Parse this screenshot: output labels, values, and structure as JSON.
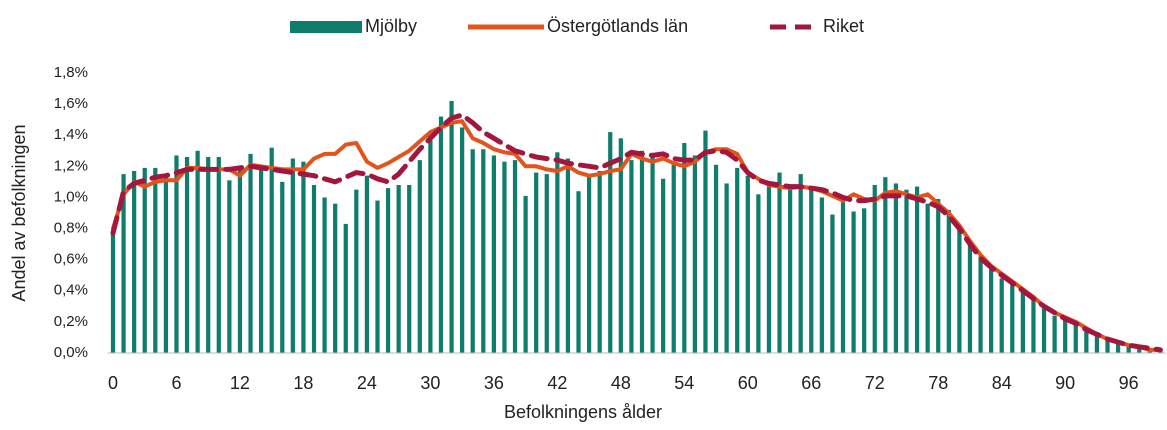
{
  "chart_data": {
    "type": "bar",
    "xlabel": "Befolkningens ålder",
    "ylabel": "Andel av befolkningen",
    "categories": [
      "0",
      null,
      null,
      null,
      null,
      null,
      "6",
      null,
      null,
      null,
      null,
      null,
      "12",
      null,
      null,
      null,
      null,
      null,
      "18",
      null,
      null,
      null,
      null,
      null,
      "24",
      null,
      null,
      null,
      null,
      null,
      "30",
      null,
      null,
      null,
      null,
      null,
      "36",
      null,
      null,
      null,
      null,
      null,
      "42",
      null,
      null,
      null,
      null,
      null,
      "48",
      null,
      null,
      null,
      null,
      null,
      "54",
      null,
      null,
      null,
      null,
      null,
      "60",
      null,
      null,
      null,
      null,
      null,
      "66",
      null,
      null,
      null,
      null,
      null,
      "72",
      null,
      null,
      null,
      null,
      null,
      "78",
      null,
      null,
      null,
      null,
      null,
      "84",
      null,
      null,
      null,
      null,
      null,
      "90",
      null,
      null,
      null,
      null,
      null,
      "96",
      null,
      null,
      null
    ],
    "ylim": [
      0,
      1.8
    ],
    "yticks": [
      {
        "value": 0,
        "label": "0,0%"
      },
      {
        "value": 0.2,
        "label": "0,2%"
      },
      {
        "value": 0.4,
        "label": "0,4%"
      },
      {
        "value": 0.6,
        "label": "0,6%"
      },
      {
        "value": 0.8,
        "label": "0,8%"
      },
      {
        "value": 1.0,
        "label": "1,0%"
      },
      {
        "value": 1.2,
        "label": "1,2%"
      },
      {
        "value": 1.4,
        "label": "1,4%"
      },
      {
        "value": 1.6,
        "label": "1,6%"
      },
      {
        "value": 1.8,
        "label": "1,8%"
      }
    ],
    "grid": false,
    "legend": "top",
    "series": [
      {
        "name": "Mjölby",
        "type": "bar",
        "color": "#0e7d6c",
        "values": [
          0.79,
          1.15,
          1.17,
          1.19,
          1.19,
          1.15,
          1.27,
          1.26,
          1.3,
          1.26,
          1.26,
          1.11,
          1.2,
          1.28,
          1.2,
          1.32,
          1.1,
          1.25,
          1.23,
          1.08,
          1.0,
          0.96,
          0.83,
          1.05,
          1.14,
          0.98,
          1.06,
          1.08,
          1.08,
          1.24,
          1.4,
          1.52,
          1.62,
          1.45,
          1.31,
          1.31,
          1.27,
          1.23,
          1.24,
          1.01,
          1.16,
          1.15,
          1.29,
          1.25,
          1.04,
          1.15,
          1.17,
          1.42,
          1.38,
          1.24,
          1.3,
          1.28,
          1.12,
          1.21,
          1.35,
          1.27,
          1.43,
          1.21,
          1.09,
          1.19,
          1.14,
          1.02,
          1.07,
          1.16,
          1.08,
          1.15,
          1.05,
          1.0,
          0.89,
          0.97,
          0.91,
          0.93,
          1.08,
          1.13,
          1.09,
          1.05,
          1.07,
          0.96,
          0.99,
          0.92,
          0.82,
          0.72,
          0.62,
          0.55,
          0.48,
          0.44,
          0.39,
          0.35,
          0.29,
          0.24,
          0.22,
          0.19,
          0.15,
          0.11,
          0.09,
          0.07,
          0.05,
          0.04,
          0.03,
          0.02
        ]
      },
      {
        "name": "Östergötlands län",
        "type": "line",
        "color": "#e4531c",
        "values": [
          0.8,
          1.02,
          1.1,
          1.07,
          1.1,
          1.11,
          1.11,
          1.19,
          1.19,
          1.18,
          1.18,
          1.18,
          1.14,
          1.21,
          1.2,
          1.19,
          1.18,
          1.18,
          1.18,
          1.25,
          1.28,
          1.28,
          1.34,
          1.35,
          1.23,
          1.19,
          1.22,
          1.26,
          1.3,
          1.36,
          1.42,
          1.45,
          1.48,
          1.49,
          1.38,
          1.35,
          1.31,
          1.29,
          1.28,
          1.2,
          1.2,
          1.18,
          1.17,
          1.2,
          1.16,
          1.14,
          1.15,
          1.17,
          1.18,
          1.28,
          1.25,
          1.23,
          1.25,
          1.22,
          1.2,
          1.23,
          1.29,
          1.31,
          1.31,
          1.28,
          1.16,
          1.12,
          1.08,
          1.07,
          1.06,
          1.07,
          1.06,
          1.04,
          1.01,
          0.98,
          1.02,
          0.99,
          0.98,
          1.03,
          1.04,
          1.02,
          1.0,
          1.02,
          0.96,
          0.9,
          0.82,
          0.72,
          0.63,
          0.56,
          0.51,
          0.46,
          0.41,
          0.36,
          0.3,
          0.26,
          0.23,
          0.2,
          0.16,
          0.12,
          0.09,
          0.07,
          0.05,
          0.04,
          0.02,
          0.02
        ]
      },
      {
        "name": "Riket",
        "type": "line",
        "style": "dashed",
        "color": "#a3173f",
        "values": [
          0.77,
          1.04,
          1.09,
          1.11,
          1.13,
          1.14,
          1.16,
          1.18,
          1.18,
          1.18,
          1.18,
          1.18,
          1.19,
          1.2,
          1.19,
          1.18,
          1.17,
          1.16,
          1.15,
          1.14,
          1.12,
          1.1,
          1.13,
          1.16,
          1.15,
          1.12,
          1.1,
          1.15,
          1.23,
          1.31,
          1.38,
          1.45,
          1.51,
          1.53,
          1.48,
          1.42,
          1.38,
          1.34,
          1.3,
          1.28,
          1.26,
          1.25,
          1.24,
          1.22,
          1.21,
          1.2,
          1.19,
          1.22,
          1.25,
          1.29,
          1.28,
          1.27,
          1.28,
          1.25,
          1.24,
          1.24,
          1.29,
          1.3,
          1.29,
          1.24,
          1.16,
          1.11,
          1.09,
          1.08,
          1.07,
          1.07,
          1.06,
          1.05,
          1.03,
          1.0,
          0.98,
          0.98,
          0.99,
          1.01,
          1.01,
          1.01,
          0.99,
          0.97,
          0.94,
          0.88,
          0.8,
          0.7,
          0.61,
          0.55,
          0.5,
          0.45,
          0.4,
          0.35,
          0.3,
          0.26,
          0.22,
          0.19,
          0.15,
          0.12,
          0.09,
          0.07,
          0.05,
          0.04,
          0.03,
          0.02
        ]
      }
    ]
  }
}
